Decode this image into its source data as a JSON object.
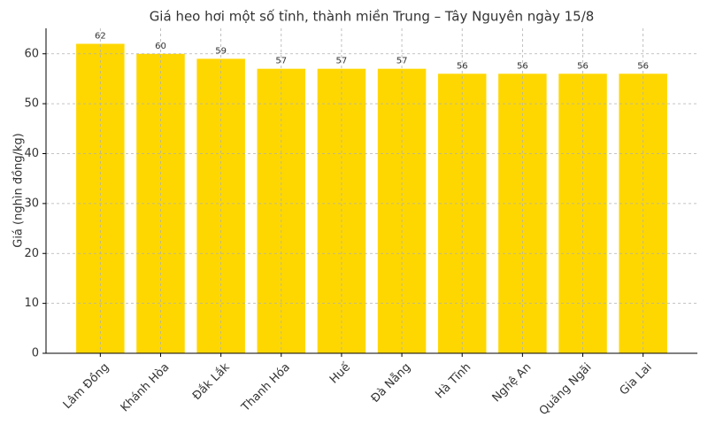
{
  "chart_data": {
    "type": "bar",
    "title": "Giá heo hơi một số tỉnh, thành miền Trung – Tây Nguyên ngày 15/8",
    "y_label": "Giá (nghìn đồng/kg)",
    "categories": [
      "Lâm Đồng",
      "Khánh Hòa",
      "Đắk Lắk",
      "Thanh Hóa",
      "Huế",
      "Đà Nẵng",
      "Hà Tĩnh",
      "Nghệ An",
      "Quảng Ngãi",
      "Gia Lai"
    ],
    "values": [
      62,
      60,
      59,
      57,
      57,
      57,
      56,
      56,
      56,
      56
    ],
    "color": "#ffd700",
    "ylim": [
      0,
      65.1
    ],
    "yticks": [
      0,
      10,
      20,
      30,
      40,
      50,
      60
    ],
    "grid": true
  }
}
